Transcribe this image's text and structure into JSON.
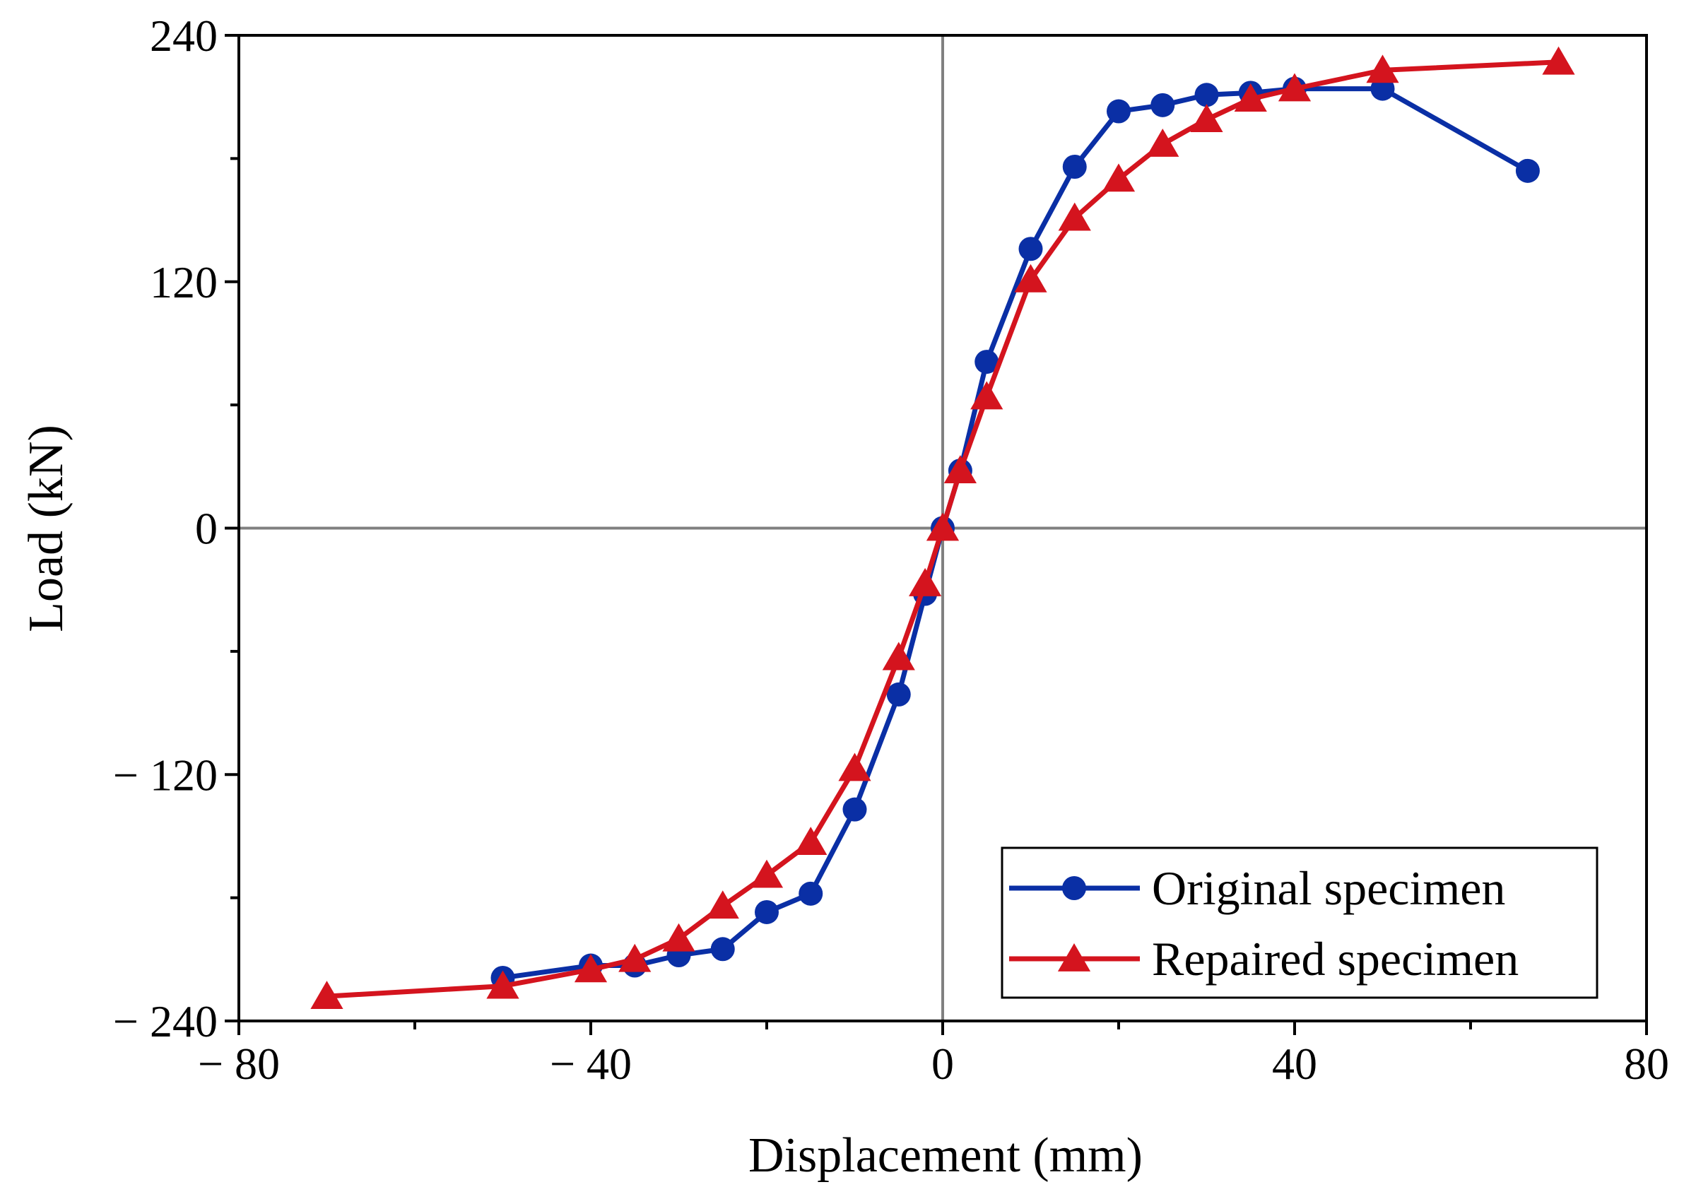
{
  "chart_data": {
    "type": "line",
    "title": "",
    "xlabel": "Displacement (mm)",
    "ylabel": "Load (kN)",
    "xlim": [
      -80,
      80
    ],
    "ylim": [
      -240,
      240
    ],
    "xticks": [
      -80,
      -40,
      0,
      40,
      80
    ],
    "yticks": [
      -240,
      -120,
      0,
      120,
      240
    ],
    "xtick_labels": [
      "− 80",
      "− 40",
      "0",
      "40",
      "80"
    ],
    "ytick_labels": [
      "− 240",
      "− 120",
      "0",
      "120",
      "240"
    ],
    "grid": false,
    "zero_lines": true,
    "legend_position": "bottom-right",
    "series": [
      {
        "name": "Original specimen",
        "color": "#0a2fa5",
        "marker": "circle",
        "x": [
          -50,
          -40,
          -35,
          -30,
          -25,
          -20,
          -15,
          -10,
          -5,
          -2,
          0,
          2,
          5,
          10,
          15,
          20,
          25,
          30,
          35,
          40,
          50,
          66.5
        ],
        "y": [
          -219,
          -213,
          -213,
          -208,
          -205,
          -187,
          -178,
          -137,
          -81,
          -32,
          0,
          28,
          81,
          136,
          176,
          203,
          206,
          211,
          212,
          214,
          214,
          174
        ]
      },
      {
        "name": "Repaired specimen",
        "color": "#d4141e",
        "marker": "triangle",
        "x": [
          -70,
          -50,
          -40,
          -35,
          -30,
          -25,
          -20,
          -15,
          -10,
          -5,
          -2,
          0,
          2,
          5,
          10,
          15,
          20,
          25,
          30,
          35,
          40,
          50,
          70
        ],
        "y": [
          -228,
          -223,
          -215,
          -210,
          -200,
          -184,
          -169,
          -153,
          -117,
          -63,
          -27,
          0,
          28,
          64,
          121,
          151,
          170,
          187,
          199,
          209,
          214,
          223,
          227
        ]
      }
    ]
  }
}
